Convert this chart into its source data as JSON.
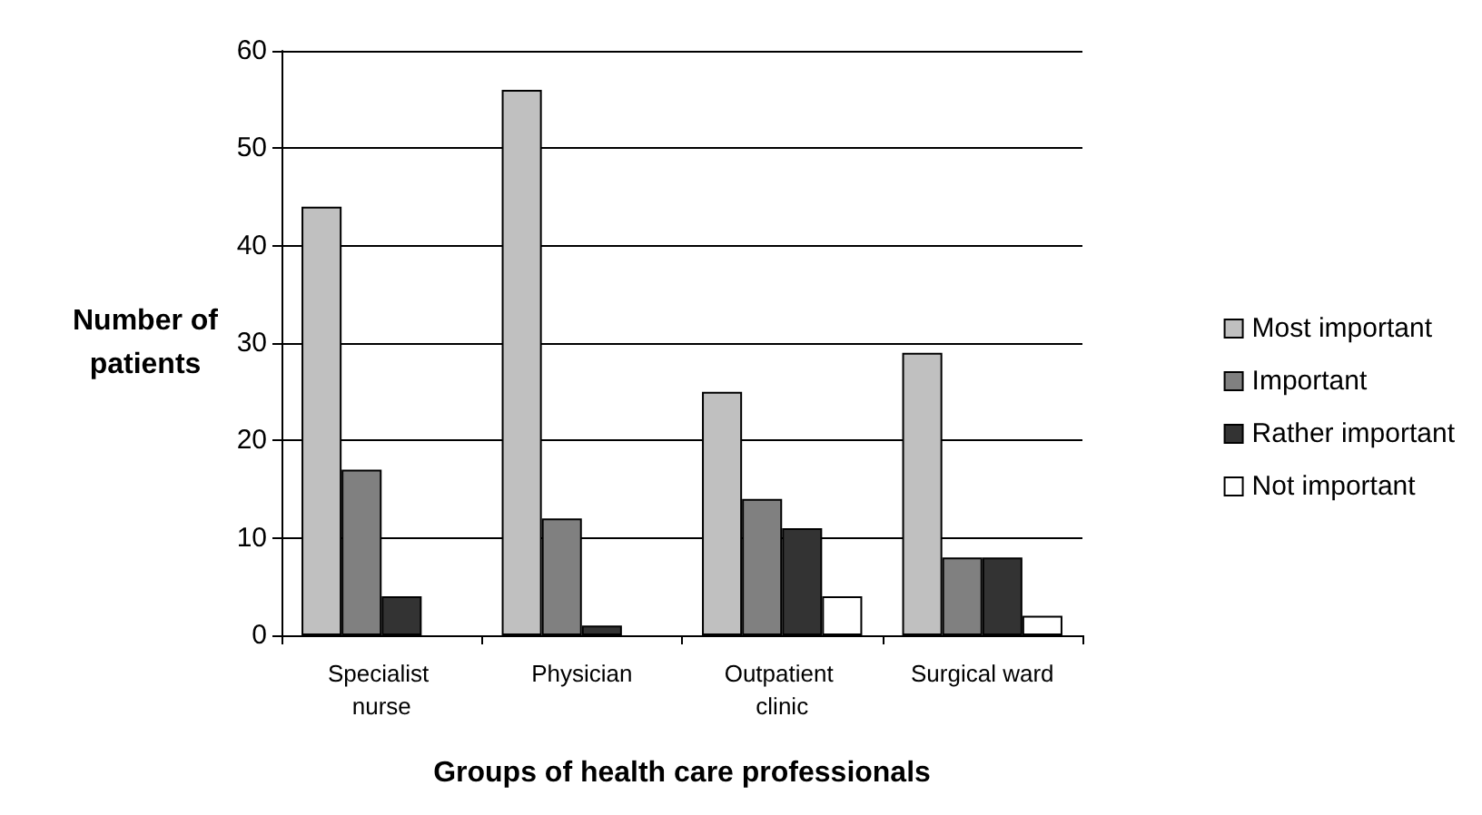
{
  "chart_data": {
    "type": "bar",
    "xlabel": "Groups of health care professionals",
    "ylabel": "Number of patients",
    "categories": [
      "Specialist nurse",
      "Physician",
      "Outpatient clinic",
      "Surgical ward"
    ],
    "series": [
      {
        "name": "Most important",
        "color": "#c0c0c0",
        "values": [
          44,
          56,
          25,
          29
        ]
      },
      {
        "name": "Important",
        "color": "#808080",
        "values": [
          17,
          12,
          14,
          8
        ]
      },
      {
        "name": "Rather important",
        "color": "#333333",
        "values": [
          4,
          1,
          11,
          8
        ]
      },
      {
        "name": "Not important",
        "color": "#ffffff",
        "values": [
          null,
          null,
          4,
          2
        ]
      }
    ],
    "ylim": [
      0,
      60
    ],
    "yticks": [
      0,
      10,
      20,
      30,
      40,
      50,
      60
    ],
    "grid": "y",
    "legend": "right"
  }
}
